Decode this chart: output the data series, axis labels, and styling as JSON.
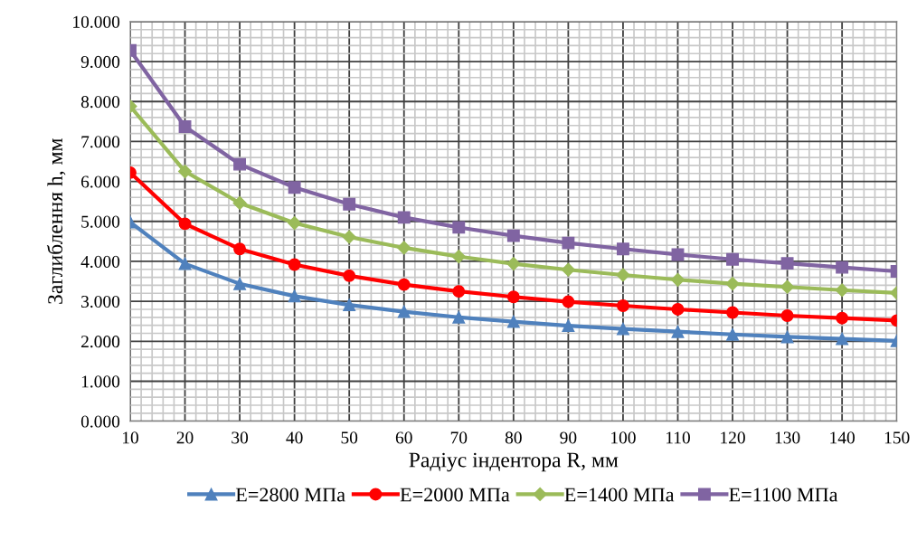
{
  "chart_data": {
    "type": "line",
    "xlabel": "Радіус індентора R, мм",
    "ylabel": "Заглиблення h, мм",
    "x": [
      10,
      20,
      30,
      40,
      50,
      60,
      70,
      80,
      90,
      100,
      110,
      120,
      130,
      140,
      150
    ],
    "xlim": [
      10,
      150
    ],
    "xticks": [
      10,
      20,
      30,
      40,
      50,
      60,
      70,
      80,
      90,
      100,
      110,
      120,
      130,
      140,
      150
    ],
    "ylim": [
      0,
      10
    ],
    "yticks": [
      {
        "value": 0,
        "label": "0.000"
      },
      {
        "value": 1,
        "label": "1.000"
      },
      {
        "value": 2,
        "label": "2.000"
      },
      {
        "value": 3,
        "label": "3.000"
      },
      {
        "value": 4,
        "label": "4.000"
      },
      {
        "value": 5,
        "label": "5.000"
      },
      {
        "value": 6,
        "label": "6.000"
      },
      {
        "value": 7,
        "label": "7.000"
      },
      {
        "value": 8,
        "label": "8.000"
      },
      {
        "value": 9,
        "label": "9.000"
      },
      {
        "value": 10,
        "label": "10.000"
      }
    ],
    "grid": true,
    "legend": "bottom",
    "line_style": "solid",
    "series": [
      {
        "name": "E=2800 МПа",
        "color": "#4f81bd",
        "marker": "triangle",
        "values": [
          4.98,
          3.94,
          3.44,
          3.13,
          2.91,
          2.74,
          2.6,
          2.49,
          2.39,
          2.31,
          2.24,
          2.17,
          2.11,
          2.06,
          2.01
        ]
      },
      {
        "name": "E=2000 МПа",
        "color": "#ff0000",
        "marker": "circle",
        "values": [
          6.22,
          4.94,
          4.31,
          3.92,
          3.64,
          3.42,
          3.25,
          3.11,
          2.99,
          2.89,
          2.8,
          2.72,
          2.64,
          2.58,
          2.52
        ]
      },
      {
        "name": "E=1400 МПа",
        "color": "#9bbb59",
        "marker": "diamond",
        "values": [
          7.88,
          6.25,
          5.46,
          4.96,
          4.61,
          4.34,
          4.12,
          3.94,
          3.79,
          3.66,
          3.54,
          3.44,
          3.36,
          3.28,
          3.21
        ]
      },
      {
        "name": "E=1100 МПа",
        "color": "#8064a2",
        "marker": "square",
        "values": [
          9.28,
          7.37,
          6.43,
          5.85,
          5.43,
          5.1,
          4.85,
          4.64,
          4.46,
          4.31,
          4.17,
          4.05,
          3.95,
          3.85,
          3.75
        ]
      }
    ]
  }
}
